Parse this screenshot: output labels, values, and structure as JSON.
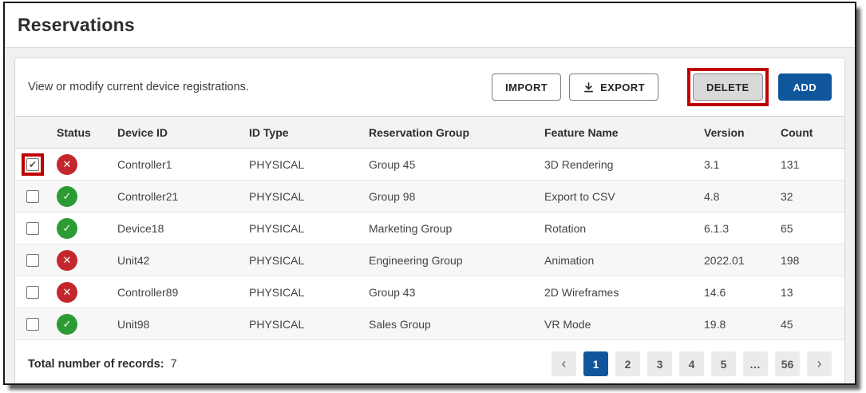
{
  "colors": {
    "accent_blue": "#10569d",
    "annotation_red": "#c00000",
    "status_red": "#c4262d",
    "status_green": "#2d9b33"
  },
  "page": {
    "title": "Reservations"
  },
  "toolbar": {
    "description": "View or modify current device registrations.",
    "buttons": {
      "import": "IMPORT",
      "export": "EXPORT",
      "export_icon": "download-icon",
      "delete": "DELETE",
      "add": "ADD"
    }
  },
  "table": {
    "columns": [
      "Status",
      "Device ID",
      "ID Type",
      "Reservation Group",
      "Feature Name",
      "Version",
      "Count"
    ],
    "rows": [
      {
        "checked": true,
        "checkbox_annotated": true,
        "status": "error",
        "device_id": "Controller1",
        "id_type": "PHYSICAL",
        "reservation_group": "Group 45",
        "feature_name": "3D Rendering",
        "version": "3.1",
        "count": "131"
      },
      {
        "checked": false,
        "checkbox_annotated": false,
        "status": "ok",
        "device_id": "Controller21",
        "id_type": "PHYSICAL",
        "reservation_group": "Group 98",
        "feature_name": "Export to CSV",
        "version": "4.8",
        "count": "32"
      },
      {
        "checked": false,
        "checkbox_annotated": false,
        "status": "ok",
        "device_id": "Device18",
        "id_type": "PHYSICAL",
        "reservation_group": "Marketing Group",
        "feature_name": "Rotation",
        "version": "6.1.3",
        "count": "65"
      },
      {
        "checked": false,
        "checkbox_annotated": false,
        "status": "error",
        "device_id": "Unit42",
        "id_type": "PHYSICAL",
        "reservation_group": "Engineering Group",
        "feature_name": "Animation",
        "version": "2022.01",
        "count": "198"
      },
      {
        "checked": false,
        "checkbox_annotated": false,
        "status": "error",
        "device_id": "Controller89",
        "id_type": "PHYSICAL",
        "reservation_group": "Group 43",
        "feature_name": "2D Wireframes",
        "version": "14.6",
        "count": "13"
      },
      {
        "checked": false,
        "checkbox_annotated": false,
        "status": "ok",
        "device_id": "Unit98",
        "id_type": "PHYSICAL",
        "reservation_group": "Sales Group",
        "feature_name": "VR Mode",
        "version": "19.8",
        "count": "45"
      }
    ],
    "status_icons": {
      "error": "✕",
      "ok": "✓"
    },
    "checkbox_mark": "✔"
  },
  "footer": {
    "total_label": "Total number of records:",
    "total_value": "7",
    "pagination": {
      "prev_icon": "‹",
      "next_icon": "›",
      "pages": [
        "1",
        "2",
        "3",
        "4",
        "5",
        "…",
        "56"
      ],
      "active_page": "1"
    }
  }
}
